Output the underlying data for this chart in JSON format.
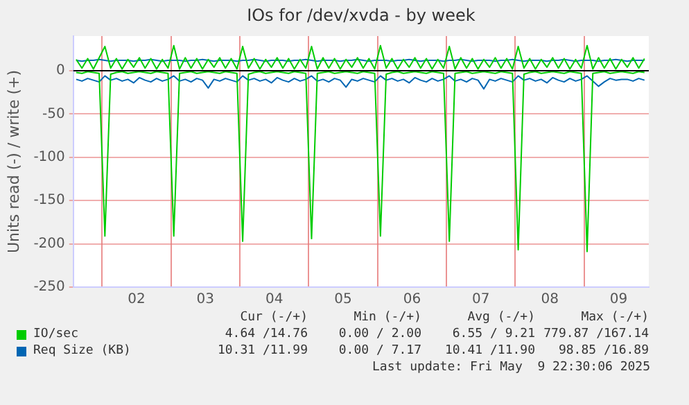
{
  "chart_data": {
    "type": "line",
    "title": "IOs for /dev/xvda - by week",
    "ylabel": "Units read (-) / write (+)",
    "x": [
      "2025-05-01T15:00",
      "2025-05-01T17:00",
      "2025-05-01T19:00",
      "2025-05-01T21:00",
      "2025-05-01T23:00",
      "2025-05-02T01:00",
      "2025-05-02T03:00",
      "2025-05-02T05:00",
      "2025-05-02T07:00",
      "2025-05-02T09:00",
      "2025-05-02T11:00",
      "2025-05-02T13:00",
      "2025-05-02T15:00",
      "2025-05-02T17:00",
      "2025-05-02T19:00",
      "2025-05-02T21:00",
      "2025-05-02T23:00",
      "2025-05-03T01:00",
      "2025-05-03T03:00",
      "2025-05-03T05:00",
      "2025-05-03T07:00",
      "2025-05-03T09:00",
      "2025-05-03T11:00",
      "2025-05-03T13:00",
      "2025-05-03T15:00",
      "2025-05-03T17:00",
      "2025-05-03T19:00",
      "2025-05-03T21:00",
      "2025-05-03T23:00",
      "2025-05-04T01:00",
      "2025-05-04T03:00",
      "2025-05-04T05:00",
      "2025-05-04T07:00",
      "2025-05-04T09:00",
      "2025-05-04T11:00",
      "2025-05-04T13:00",
      "2025-05-04T15:00",
      "2025-05-04T17:00",
      "2025-05-04T19:00",
      "2025-05-04T21:00",
      "2025-05-04T23:00",
      "2025-05-05T01:00",
      "2025-05-05T03:00",
      "2025-05-05T05:00",
      "2025-05-05T07:00",
      "2025-05-05T09:00",
      "2025-05-05T11:00",
      "2025-05-05T13:00",
      "2025-05-05T15:00",
      "2025-05-05T17:00",
      "2025-05-05T19:00",
      "2025-05-05T21:00",
      "2025-05-05T23:00",
      "2025-05-06T01:00",
      "2025-05-06T03:00",
      "2025-05-06T05:00",
      "2025-05-06T07:00",
      "2025-05-06T09:00",
      "2025-05-06T11:00",
      "2025-05-06T13:00",
      "2025-05-06T15:00",
      "2025-05-06T17:00",
      "2025-05-06T19:00",
      "2025-05-06T21:00",
      "2025-05-06T23:00",
      "2025-05-07T01:00",
      "2025-05-07T03:00",
      "2025-05-07T05:00",
      "2025-05-07T07:00",
      "2025-05-07T09:00",
      "2025-05-07T11:00",
      "2025-05-07T13:00",
      "2025-05-07T15:00",
      "2025-05-07T17:00",
      "2025-05-07T19:00",
      "2025-05-07T21:00",
      "2025-05-07T23:00",
      "2025-05-08T01:00",
      "2025-05-08T03:00",
      "2025-05-08T05:00",
      "2025-05-08T07:00",
      "2025-05-08T09:00",
      "2025-05-08T11:00",
      "2025-05-08T13:00",
      "2025-05-08T15:00",
      "2025-05-08T17:00",
      "2025-05-08T19:00",
      "2025-05-08T21:00",
      "2025-05-08T23:00",
      "2025-05-09T01:00",
      "2025-05-09T03:00",
      "2025-05-09T05:00",
      "2025-05-09T07:00",
      "2025-05-09T09:00",
      "2025-05-09T11:00",
      "2025-05-09T13:00",
      "2025-05-09T15:00",
      "2025-05-09T17:00",
      "2025-05-09T19:00",
      "2025-05-09T21:00"
    ],
    "series": [
      {
        "color": "#00cc00",
        "values": [
          -2,
          -3,
          -1,
          -2,
          -3,
          -191,
          -4,
          -2,
          -1,
          -3,
          -2,
          -1,
          -2,
          -3,
          -1,
          -2,
          -3,
          -191,
          -3,
          -2,
          -1,
          -3,
          -2,
          -1,
          -2,
          -3,
          -1,
          -2,
          -3,
          -197,
          -4,
          -2,
          -1,
          -3,
          -2,
          -1,
          -2,
          -3,
          -1,
          -2,
          -3,
          -194,
          -3,
          -2,
          -1,
          -3,
          -2,
          -1,
          -2,
          -3,
          -1,
          -2,
          -3,
          -191,
          -4,
          -2,
          -1,
          -3,
          -2,
          -1,
          -2,
          -3,
          -1,
          -2,
          -3,
          -197,
          -3,
          -2,
          -1,
          -3,
          -2,
          -1,
          -2,
          -3,
          -1,
          -2,
          -3,
          -207,
          -4,
          -2,
          -1,
          -3,
          -2,
          -1,
          -2,
          -3,
          -1,
          -2,
          -3,
          -209,
          -3,
          -2,
          -1,
          -3,
          -2,
          -1,
          -2,
          -3,
          -1,
          -2
        ]
      },
      {
        "name": "IO/sec",
        "color": "#00cc00",
        "values": [
          13,
          3,
          14,
          2,
          15,
          28,
          3,
          14,
          2,
          13,
          4,
          15,
          3,
          14,
          2,
          13,
          3,
          29,
          2,
          15,
          3,
          14,
          2,
          13,
          4,
          15,
          3,
          14,
          2,
          28,
          3,
          14,
          2,
          13,
          4,
          15,
          3,
          14,
          2,
          13,
          3,
          28,
          2,
          15,
          3,
          14,
          2,
          13,
          4,
          15,
          3,
          14,
          2,
          29,
          3,
          14,
          2,
          13,
          4,
          15,
          3,
          14,
          2,
          13,
          3,
          28,
          2,
          15,
          3,
          14,
          2,
          13,
          4,
          15,
          3,
          14,
          2,
          28,
          3,
          14,
          2,
          13,
          4,
          15,
          3,
          14,
          2,
          13,
          3,
          29,
          2,
          15,
          3,
          14,
          2,
          13,
          4,
          15,
          3,
          14
        ]
      },
      {
        "color": "#0066b3",
        "values": [
          -10,
          -12,
          -9,
          -11,
          -13,
          -6,
          -11,
          -9,
          -12,
          -10,
          -14,
          -8,
          -11,
          -13,
          -9,
          -12,
          -10,
          -6,
          -12,
          -10,
          -13,
          -9,
          -11,
          -20,
          -10,
          -12,
          -9,
          -11,
          -13,
          -6,
          -11,
          -9,
          -12,
          -10,
          -14,
          -8,
          -11,
          -13,
          -9,
          -12,
          -10,
          -6,
          -12,
          -10,
          -13,
          -9,
          -11,
          -19,
          -10,
          -12,
          -9,
          -11,
          -13,
          -6,
          -11,
          -9,
          -12,
          -10,
          -14,
          -8,
          -11,
          -13,
          -9,
          -12,
          -10,
          -6,
          -12,
          -10,
          -13,
          -9,
          -11,
          -21,
          -10,
          -12,
          -9,
          -11,
          -13,
          -6,
          -11,
          -9,
          -12,
          -10,
          -14,
          -8,
          -11,
          -13,
          -9,
          -12,
          -10,
          -6,
          -12,
          -18,
          -13,
          -9,
          -11,
          -10,
          -10,
          -12,
          -9,
          -11
        ]
      },
      {
        "name": "Req Size (KB)",
        "color": "#0066b3",
        "values": [
          12,
          11,
          12,
          12,
          13,
          12,
          11,
          12,
          12,
          12,
          11,
          12,
          12,
          13,
          12,
          11,
          12,
          12,
          12,
          11,
          12,
          12,
          13,
          12,
          11,
          12,
          12,
          12,
          11,
          12,
          12,
          13,
          12,
          11,
          12,
          12,
          12,
          11,
          12,
          12,
          13,
          12,
          11,
          12,
          12,
          12,
          11,
          12,
          12,
          13,
          12,
          11,
          12,
          12,
          12,
          11,
          12,
          12,
          13,
          12,
          11,
          12,
          12,
          12,
          11,
          12,
          12,
          13,
          12,
          11,
          12,
          12,
          12,
          11,
          12,
          12,
          13,
          12,
          11,
          12,
          12,
          12,
          11,
          12,
          12,
          13,
          12,
          11,
          12,
          12,
          12,
          11,
          12,
          12,
          13,
          12,
          11,
          12,
          12,
          12
        ]
      }
    ],
    "xlim": [
      "2025-05-01T14:00",
      "2025-05-09T22:30"
    ],
    "xticks": [
      {
        "value": "2025-05-02T00:00",
        "label": null
      },
      {
        "value": "2025-05-02T12:00",
        "label": "02"
      },
      {
        "value": "2025-05-03T00:00",
        "label": null
      },
      {
        "value": "2025-05-03T12:00",
        "label": "03"
      },
      {
        "value": "2025-05-04T00:00",
        "label": null
      },
      {
        "value": "2025-05-04T12:00",
        "label": "04"
      },
      {
        "value": "2025-05-05T00:00",
        "label": null
      },
      {
        "value": "2025-05-05T12:00",
        "label": "05"
      },
      {
        "value": "2025-05-06T00:00",
        "label": null
      },
      {
        "value": "2025-05-06T12:00",
        "label": "06"
      },
      {
        "value": "2025-05-07T00:00",
        "label": null
      },
      {
        "value": "2025-05-07T12:00",
        "label": "07"
      },
      {
        "value": "2025-05-08T00:00",
        "label": null
      },
      {
        "value": "2025-05-08T12:00",
        "label": "08"
      },
      {
        "value": "2025-05-09T00:00",
        "label": null
      },
      {
        "value": "2025-05-09T12:00",
        "label": "09"
      }
    ],
    "ylim": [
      -250,
      40
    ],
    "yticks": [
      -250,
      -200,
      -150,
      -100,
      -50,
      0
    ],
    "grid": true,
    "legend": "bottom",
    "marker": "none",
    "line_style": "solid",
    "annotations": [
      "Cur (-/+)",
      "Min (-/+)",
      "Avg (-/+)",
      "Max (-/+)",
      "4.64 /14.76",
      "0.00 / 2.00",
      "6.55 / 9.21",
      "779.87 /167.14",
      "10.31 /11.99",
      "0.00 / 7.17",
      "10.41 /11.90",
      "98.85 /16.89",
      "Last update: Fri May  9 22:30:06 2025"
    ]
  }
}
